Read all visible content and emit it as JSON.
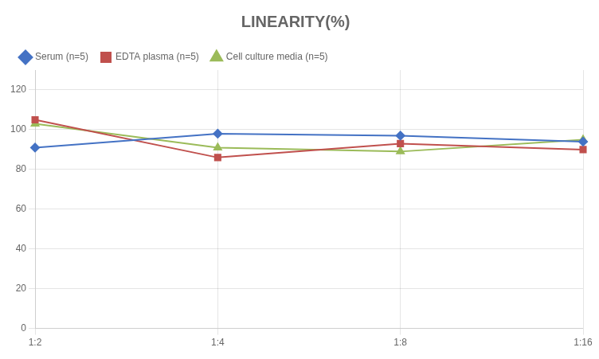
{
  "chart_data": {
    "type": "line",
    "title": "LINEARITY(%)",
    "categories": [
      "1:2",
      "1:4",
      "1:8",
      "1:16"
    ],
    "series": [
      {
        "name": "Serum (n=5)",
        "color": "#4472C4",
        "marker": "diamond",
        "values": [
          91,
          98,
          97,
          94
        ]
      },
      {
        "name": "EDTA plasma (n=5)",
        "color": "#C0504D",
        "marker": "square",
        "values": [
          105,
          86,
          93,
          90
        ]
      },
      {
        "name": "Cell culture media (n=5)",
        "color": "#9BBB59",
        "marker": "triangle",
        "values": [
          103,
          91,
          89,
          95
        ]
      }
    ],
    "ylim": [
      0,
      130
    ],
    "yticks": [
      0,
      20,
      40,
      60,
      80,
      100,
      120
    ],
    "grid": true,
    "legend": "upper left"
  }
}
